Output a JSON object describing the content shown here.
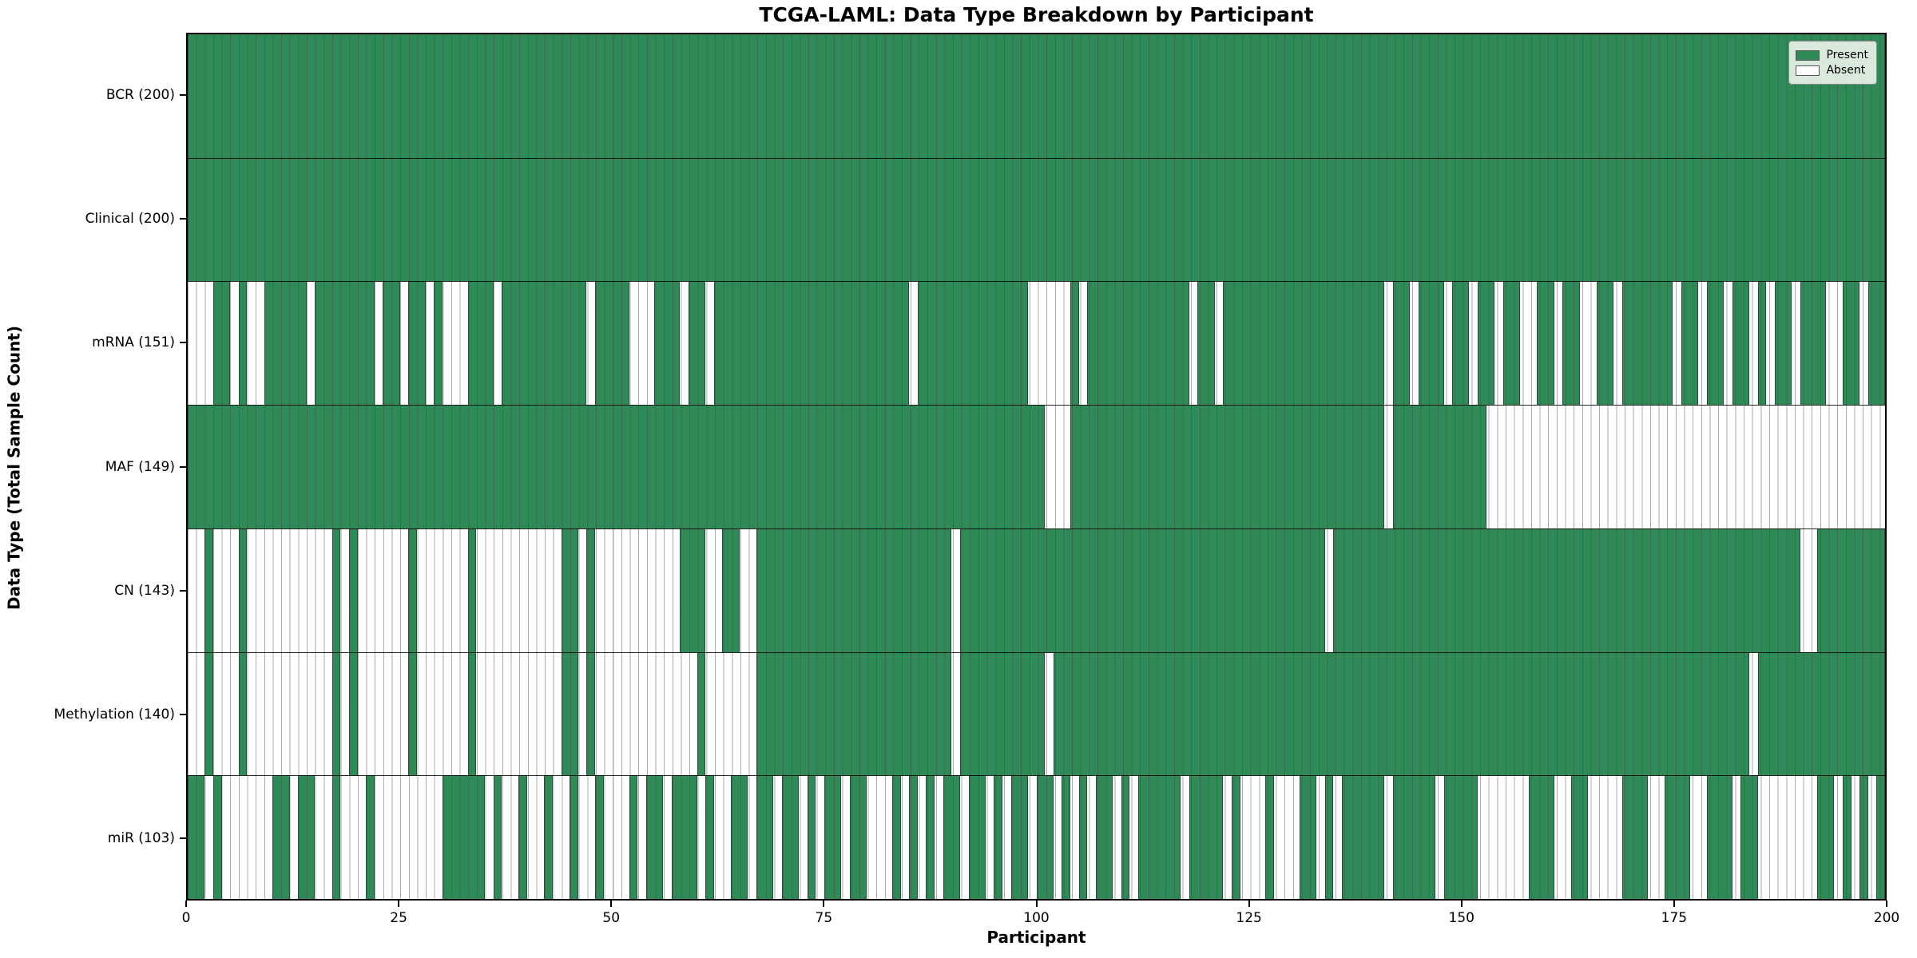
{
  "title": "TCGA-LAML: Data Type Breakdown by Participant",
  "xlabel": "Participant",
  "ylabel": "Data Type (Total Sample Count)",
  "legend": {
    "present_label": "Present",
    "absent_label": "Absent"
  },
  "colors": {
    "present": "#2e8b57",
    "absent": "#ffffff",
    "grid_line": "#464646",
    "border": "#000000"
  },
  "x_ticks": [
    0,
    25,
    50,
    75,
    100,
    125,
    150,
    175,
    200
  ],
  "chart_data": {
    "type": "heatmap",
    "n_participants": 200,
    "x_axis_label": "Participant",
    "y_axis_label": "Data Type (Total Sample Count)",
    "legend_entries": [
      "Present",
      "Absent"
    ],
    "rows": [
      {
        "label": "BCR (200)",
        "data_type": "BCR",
        "present_count": 200,
        "absent": []
      },
      {
        "label": "Clinical (200)",
        "data_type": "Clinical",
        "present_count": 200,
        "absent": []
      },
      {
        "label": "mRNA (151)",
        "data_type": "mRNA",
        "present_count": 151,
        "absent": [
          0,
          1,
          2,
          5,
          7,
          8,
          14,
          22,
          25,
          28,
          30,
          31,
          32,
          36,
          47,
          52,
          53,
          54,
          58,
          61,
          85,
          99,
          100,
          101,
          102,
          103,
          105,
          118,
          121,
          141,
          144,
          148,
          151,
          154,
          157,
          158,
          161,
          164,
          165,
          168,
          175,
          178,
          181,
          184,
          186,
          189,
          193,
          194,
          197
        ]
      },
      {
        "label": "MAF (149)",
        "data_type": "MAF",
        "present_count": 149,
        "absent": [
          101,
          102,
          103,
          141,
          153,
          154,
          155,
          156,
          157,
          158,
          159,
          160,
          161,
          162,
          163,
          164,
          165,
          166,
          167,
          168,
          169,
          170,
          171,
          172,
          173,
          174,
          175,
          176,
          177,
          178,
          179,
          180,
          181,
          182,
          183,
          184,
          185,
          186,
          187,
          188,
          189,
          190,
          191,
          192,
          193,
          194,
          195,
          196,
          197,
          198,
          199
        ]
      },
      {
        "label": "CN (143)",
        "data_type": "CN",
        "present_count": 143,
        "absent": [
          0,
          1,
          3,
          4,
          5,
          7,
          8,
          9,
          10,
          11,
          12,
          13,
          14,
          15,
          16,
          18,
          20,
          21,
          22,
          23,
          24,
          25,
          27,
          28,
          29,
          30,
          31,
          32,
          34,
          35,
          36,
          37,
          38,
          39,
          40,
          41,
          42,
          43,
          46,
          48,
          49,
          50,
          51,
          52,
          53,
          54,
          55,
          56,
          57,
          61,
          62,
          65,
          66,
          90,
          134,
          190,
          191
        ]
      },
      {
        "label": "Methylation (140)",
        "data_type": "Methylation",
        "present_count": 140,
        "absent": [
          0,
          1,
          3,
          4,
          5,
          7,
          8,
          9,
          10,
          11,
          12,
          13,
          14,
          15,
          16,
          18,
          20,
          21,
          22,
          23,
          24,
          25,
          27,
          28,
          29,
          30,
          31,
          32,
          34,
          35,
          36,
          37,
          38,
          39,
          40,
          41,
          42,
          43,
          46,
          48,
          49,
          50,
          51,
          52,
          53,
          54,
          55,
          56,
          57,
          58,
          59,
          61,
          62,
          63,
          64,
          65,
          66,
          90,
          101,
          184
        ]
      },
      {
        "label": "miR (103)",
        "data_type": "miR",
        "present_count": 103,
        "absent": [
          2,
          4,
          5,
          6,
          7,
          8,
          9,
          12,
          15,
          16,
          18,
          19,
          20,
          22,
          23,
          24,
          25,
          26,
          27,
          28,
          29,
          35,
          37,
          38,
          40,
          41,
          43,
          44,
          46,
          47,
          49,
          50,
          51,
          53,
          56,
          60,
          62,
          63,
          66,
          69,
          72,
          74,
          77,
          80,
          81,
          82,
          84,
          86,
          88,
          91,
          94,
          96,
          99,
          102,
          104,
          106,
          109,
          111,
          117,
          122,
          124,
          125,
          126,
          128,
          129,
          130,
          133,
          135,
          141,
          147,
          152,
          153,
          154,
          155,
          156,
          157,
          161,
          162,
          165,
          166,
          167,
          168,
          172,
          173,
          177,
          178,
          182,
          185,
          186,
          187,
          188,
          189,
          190,
          191,
          194,
          196,
          198
        ]
      }
    ]
  }
}
